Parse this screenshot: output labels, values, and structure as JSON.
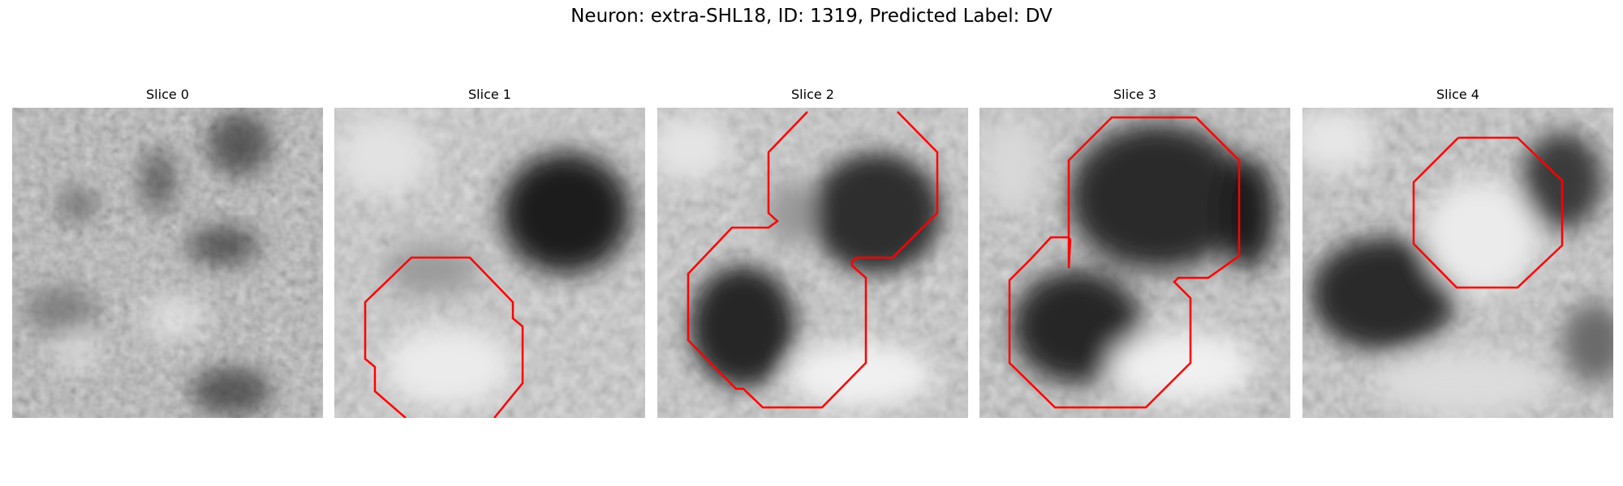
{
  "figure": {
    "title": "Neuron: extra-SHL18, ID: 1319, Predicted Label: DV"
  },
  "contour_color": "#ff0000",
  "panels": [
    {
      "title": "Slice 0",
      "has_contour": false
    },
    {
      "title": "Slice 1",
      "has_contour": true
    },
    {
      "title": "Slice 2",
      "has_contour": true
    },
    {
      "title": "Slice 3",
      "has_contour": true
    },
    {
      "title": "Slice 4",
      "has_contour": true
    }
  ]
}
